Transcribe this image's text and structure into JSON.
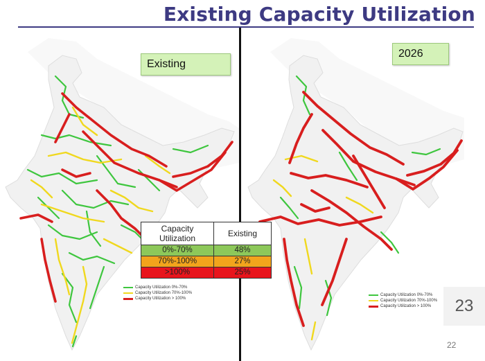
{
  "title": "Existing Capacity Utilization",
  "left_panel": {
    "label": "Existing"
  },
  "right_panel": {
    "label": "2026"
  },
  "colors": {
    "title": "#3d3a82",
    "low": "#3ec63e",
    "mid": "#f0d81e",
    "high": "#d81e1e",
    "land": "#f1f1f1",
    "neighbour_land": "#f8f8f8"
  },
  "legend": {
    "items": [
      {
        "label": "Capacity Utilization 0%-70%",
        "color": "#3ec63e"
      },
      {
        "label": "Capacity Utilization 70%-100%",
        "color": "#f0d81e"
      },
      {
        "label": "Capacity Utilization > 100%",
        "color": "#d81e1e"
      }
    ]
  },
  "table": {
    "header_band": "Capacity\nUtilization",
    "header_value": "Existing",
    "rows": [
      {
        "band": "0%-70%",
        "value": "48%",
        "bg": "#8dc85a"
      },
      {
        "band": "70%-100%",
        "value": "27%",
        "bg": "#f2a41c"
      },
      {
        "band": ">100%",
        "value": "25%",
        "bg": "#e8141c"
      }
    ]
  },
  "page_number_large": "23",
  "page_number_small": "22"
}
